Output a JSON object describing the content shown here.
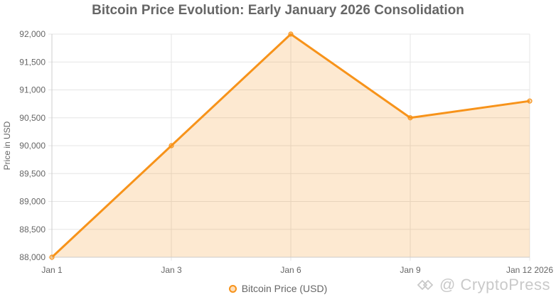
{
  "chart_data": {
    "type": "area",
    "title": "Bitcoin Price Evolution: Early January 2026 Consolidation",
    "xlabel": "",
    "ylabel": "Price in USD",
    "categories": [
      "Jan 1",
      "Jan 3",
      "Jan 6",
      "Jan 9",
      "Jan 12 2026"
    ],
    "series": [
      {
        "name": "Bitcoin Price (USD)",
        "values": [
          88000,
          90000,
          92000,
          90500,
          90800
        ],
        "color": "#f7931a"
      }
    ],
    "ylim": [
      88000,
      92000
    ],
    "yticks": [
      "88,000",
      "88,500",
      "89,000",
      "89,500",
      "90,000",
      "90,500",
      "91,000",
      "91,500",
      "92,000"
    ],
    "ytick_values": [
      88000,
      88500,
      89000,
      89500,
      90000,
      90500,
      91000,
      91500,
      92000
    ],
    "grid": true,
    "legend_position": "bottom"
  },
  "watermark": {
    "text": "@ CryptoPress",
    "icon": "cryptopress-logo-icon"
  }
}
